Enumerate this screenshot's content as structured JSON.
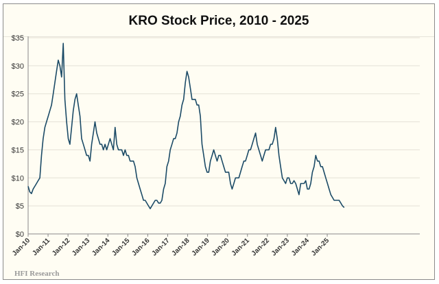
{
  "chart_data": {
    "type": "line",
    "title": "KRO Stock Price, 2010 - 2025",
    "xlabel": "",
    "ylabel": "",
    "ylim": [
      0,
      35
    ],
    "yticks": [
      "$0",
      "$5",
      "$10",
      "$15",
      "$20",
      "$25",
      "$30",
      "$35"
    ],
    "ytick_values": [
      0,
      5,
      10,
      15,
      20,
      25,
      30,
      35
    ],
    "xticks": [
      "Jan-10",
      "Jan-11",
      "Jan-12",
      "Jan-13",
      "Jan-14",
      "Jan-15",
      "Jan-16",
      "Jan-17",
      "Jan-18",
      "Jan-19",
      "Jan-20",
      "Jan-21",
      "Jan-22",
      "Jan-23",
      "Jan-24",
      "Jan-25"
    ],
    "x_start_year": 2010,
    "x_end_year": 2025.85,
    "grid": "horizontal",
    "series": [
      {
        "name": "KRO",
        "color": "#1b4a66",
        "frequency": "monthly from Jan-2010",
        "values": [
          8.5,
          7.5,
          7.2,
          8,
          8.5,
          9,
          9.5,
          10,
          14,
          17,
          19,
          20,
          21,
          22,
          23,
          25,
          27,
          29,
          31,
          30,
          28,
          34,
          24,
          20,
          17,
          16,
          19,
          22,
          24,
          25,
          23,
          21,
          17,
          16,
          15,
          14,
          14,
          13,
          16,
          18,
          20,
          18,
          17,
          16,
          16,
          15,
          16,
          15,
          16,
          17,
          16,
          15,
          19,
          16,
          15,
          15,
          15,
          14,
          15,
          14,
          14,
          13,
          13,
          13,
          12,
          10,
          9,
          8,
          7,
          6,
          6,
          5.5,
          5,
          4.5,
          5,
          5.5,
          6,
          6,
          5.5,
          5.5,
          6,
          8,
          9,
          12,
          13,
          15,
          16,
          17,
          17,
          18,
          20,
          21,
          23,
          24,
          27,
          29,
          28,
          26,
          24,
          24,
          24,
          23,
          23,
          21,
          16,
          14,
          12,
          11,
          11,
          13,
          14,
          15,
          14,
          13,
          14,
          14,
          13,
          12,
          11,
          11,
          11,
          9,
          8,
          9,
          10,
          10,
          10,
          11,
          12,
          13,
          13,
          14,
          15,
          15,
          16,
          17,
          18,
          16,
          15,
          14,
          13,
          14,
          15,
          15,
          15,
          16,
          16,
          17,
          19,
          17,
          14,
          12,
          10,
          9.5,
          9,
          10,
          10,
          9,
          9,
          9.5,
          9,
          8,
          7,
          9,
          9,
          9,
          9.5,
          8,
          8,
          9,
          11,
          12,
          14,
          13,
          13,
          12,
          12,
          11,
          10,
          9,
          8,
          7,
          6.5,
          6,
          6,
          6,
          6,
          5.5,
          5,
          4.7
        ]
      }
    ]
  },
  "source": "HFI Research"
}
